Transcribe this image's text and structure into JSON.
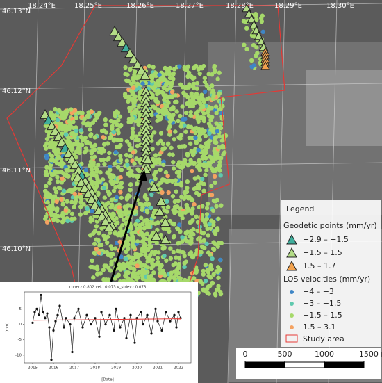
{
  "map": {
    "lon_labels": [
      "18.24°E",
      "18.25°E",
      "18.26°E",
      "18.27°E",
      "18.28°E",
      "18.29°E",
      "18.30°E"
    ],
    "lat_labels": [
      "46.13°N",
      "46.12°N",
      "46.11°N",
      "46.10°N"
    ]
  },
  "legend": {
    "title": "Legend",
    "geodetic_title": "Geodetic points (mm/yr)",
    "geodetic": [
      {
        "label": "−2.9 – −1.5",
        "color": "#3fae9c"
      },
      {
        "label": "−1.5 – 1.5",
        "color": "#b3dc86"
      },
      {
        "label": "1.5 – 1.7",
        "color": "#f2a24e"
      }
    ],
    "los_title": "LOS velocities (mm/yr)",
    "los": [
      {
        "label": "−4 – −3",
        "color": "#3f86c6"
      },
      {
        "label": "−3 – −1.5",
        "color": "#5fc9ae"
      },
      {
        "label": "−1.5 – 1.5",
        "color": "#a6d96a"
      },
      {
        "label": "1.5 – 3.1",
        "color": "#f4a261"
      }
    ],
    "study_area": {
      "label": "Study area",
      "color": "#e53935"
    }
  },
  "scale_bar": {
    "ticks": [
      0,
      500,
      1000,
      {
        "value": 1500,
        "label": "1500 m"
      }
    ]
  },
  "inset_chart": {
    "type": "line",
    "title": "coher.: 0.802 vel.: 0.073 v_stdev.: 0.073",
    "x_label": "[Date]",
    "y_label": "[mm]",
    "x": [
      2015.0,
      2015.1,
      2015.2,
      2015.3,
      2015.4,
      2015.5,
      2015.6,
      2015.7,
      2015.8,
      2015.9,
      2016.0,
      2016.1,
      2016.2,
      2016.3,
      2016.5,
      2016.6,
      2016.8,
      2016.9,
      2017.0,
      2017.2,
      2017.4,
      2017.6,
      2017.8,
      2018.0,
      2018.2,
      2018.3,
      2018.5,
      2018.7,
      2018.9,
      2019.0,
      2019.2,
      2019.4,
      2019.5,
      2019.7,
      2019.9,
      2020.0,
      2020.2,
      2020.3,
      2020.5,
      2020.7,
      2020.9,
      2021.0,
      2021.2,
      2021.4,
      2021.6,
      2021.8,
      2021.9,
      2022.0,
      2022.1
    ],
    "values": [
      0.5,
      4,
      5,
      3,
      9.5,
      4,
      2,
      3.5,
      -1,
      -11.5,
      -2,
      1,
      3,
      6,
      -1,
      2,
      0,
      -9,
      2,
      5,
      -1,
      3,
      0,
      2,
      -4,
      4,
      0,
      3,
      -2,
      5,
      -1,
      2,
      -4.5,
      3,
      -6,
      2,
      4,
      0,
      3,
      -3,
      5,
      1,
      -2,
      4,
      1,
      3,
      -1,
      4,
      2
    ],
    "color": "#111111",
    "trend": {
      "x": [
        2015.0,
        2022.1
      ],
      "values": [
        1.3,
        1.8
      ],
      "color": "#e53935"
    },
    "xlim": [
      2014.6,
      2022.6
    ],
    "ylim": [
      -12.5,
      10.5
    ],
    "xticks": [
      2015,
      2016,
      2017,
      2018,
      2019,
      2020,
      2021,
      2022
    ],
    "yticks": [
      5,
      0,
      -5,
      -10
    ]
  }
}
